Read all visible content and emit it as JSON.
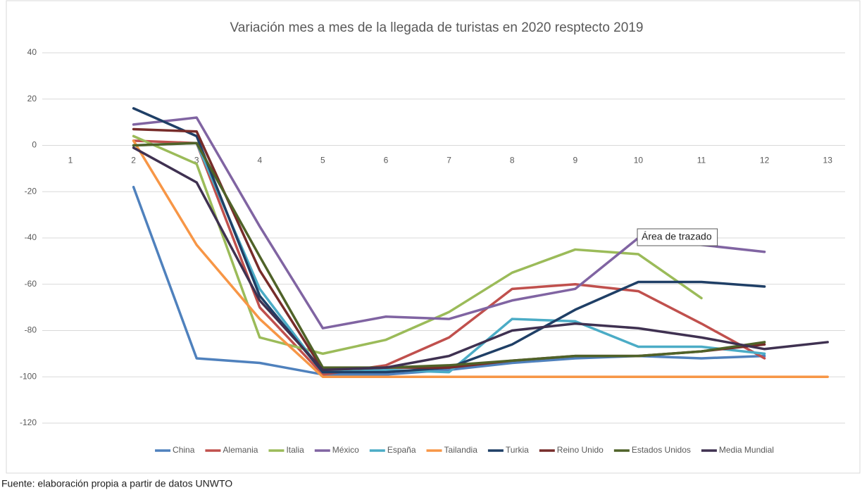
{
  "chart_data": {
    "type": "line",
    "title": "Variación mes a mes de la llegada de turistas en 2020 resptecto 2019",
    "source": "Fuente: elaboración propia a partir de datos UNWTO",
    "annotation": "Área de trazado",
    "categories": [
      "1",
      "2",
      "3",
      "4",
      "5",
      "6",
      "7",
      "8",
      "9",
      "10",
      "11",
      "12",
      "13"
    ],
    "ylim": [
      -120,
      40
    ],
    "yticks": [
      -120,
      -100,
      -80,
      -60,
      -40,
      -20,
      0,
      20,
      40
    ],
    "grid": true,
    "legend": "bottom",
    "series": [
      {
        "name": "China",
        "color": "#4f81bd",
        "values": [
          null,
          -18,
          -92,
          -94,
          -99,
          -99,
          -97,
          -94,
          -92,
          -91,
          -92,
          -91,
          null
        ]
      },
      {
        "name": "Alemania",
        "color": "#c0504d",
        "values": [
          null,
          2,
          1,
          -70,
          -99,
          -95,
          -83,
          -62,
          -60,
          -63,
          -77,
          -92,
          null
        ]
      },
      {
        "name": "Italia",
        "color": "#9bbb59",
        "values": [
          null,
          4,
          -8,
          -83,
          -90,
          -84,
          -72,
          -55,
          -45,
          -47,
          -66,
          null,
          null
        ]
      },
      {
        "name": "México",
        "color": "#8064a2",
        "values": [
          null,
          9,
          12,
          -35,
          -79,
          -74,
          -75,
          -67,
          -62,
          -40,
          -43,
          -46,
          null
        ]
      },
      {
        "name": "España",
        "color": "#4bacc6",
        "values": [
          null,
          0,
          1,
          -62,
          -98,
          -97,
          -98,
          -75,
          -76,
          -87,
          -87,
          -90,
          null
        ]
      },
      {
        "name": "Tailandia",
        "color": "#f79646",
        "values": [
          null,
          2,
          -43,
          -75,
          -100,
          -100,
          -100,
          -100,
          -100,
          -100,
          -100,
          -100,
          -100
        ]
      },
      {
        "name": "Turkia",
        "color": "#1f3f66",
        "values": [
          null,
          16,
          4,
          -65,
          -98,
          -98,
          -96,
          -86,
          -71,
          -59,
          -59,
          -61,
          null
        ]
      },
      {
        "name": "Reino Unido",
        "color": "#772c2a",
        "values": [
          null,
          7,
          6,
          -54,
          -97,
          -96,
          -96,
          -93,
          -91,
          -91,
          -89,
          -86,
          null
        ]
      },
      {
        "name": "Estados Unidos",
        "color": "#4f6228",
        "values": [
          null,
          0,
          1,
          -48,
          -96,
          -96,
          -95,
          -93,
          -91,
          -91,
          -89,
          -85,
          null
        ]
      },
      {
        "name": "Media Mundial",
        "color": "#3f3151",
        "values": [
          null,
          -1,
          -16,
          -67,
          -97,
          -96,
          -91,
          -80,
          -77,
          -79,
          -83,
          -88,
          -85
        ]
      }
    ]
  }
}
